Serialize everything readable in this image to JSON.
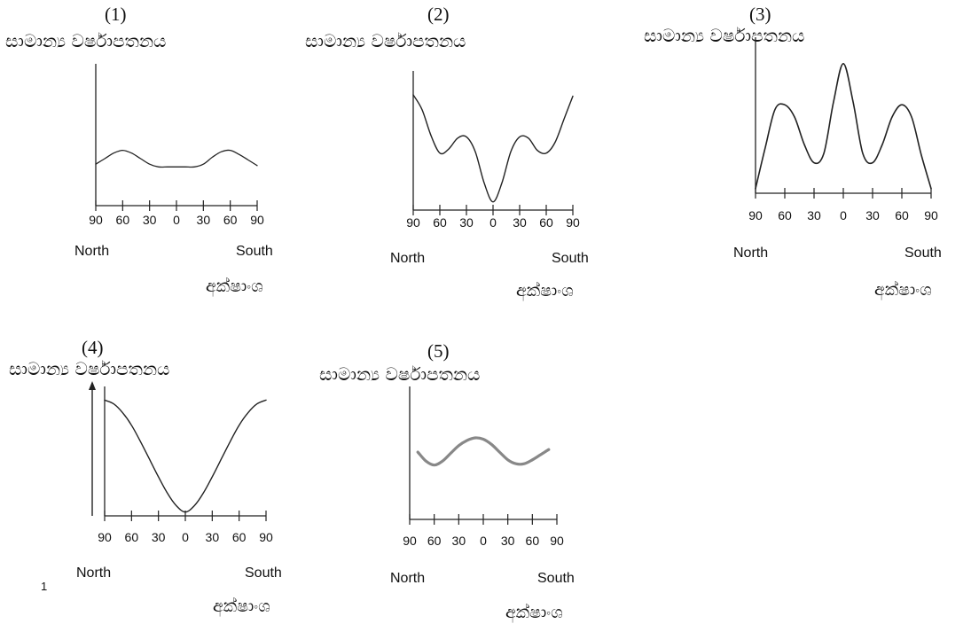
{
  "stray_mark": "1",
  "chart_data": [
    {
      "type": "line",
      "panel_number": "(1)",
      "ylabel": "සාමාන්‍ය වර්ෂාපතනය",
      "xlabel": "අක්ෂාංශ",
      "x_left": "North",
      "x_right": "South",
      "x_ticks": [
        "90",
        "60",
        "30",
        "0",
        "30",
        "60",
        "90"
      ],
      "x": [
        -90,
        -80,
        -70,
        -60,
        -50,
        -40,
        -30,
        -20,
        -10,
        0,
        10,
        20,
        30,
        40,
        50,
        60,
        70,
        80,
        90
      ],
      "y": [
        3.0,
        3.4,
        3.8,
        4.0,
        3.8,
        3.4,
        3.0,
        2.8,
        2.8,
        2.8,
        2.8,
        2.8,
        3.0,
        3.5,
        3.9,
        4.0,
        3.7,
        3.3,
        2.9
      ],
      "ylim": [
        0,
        10
      ]
    },
    {
      "type": "line",
      "panel_number": "(2)",
      "ylabel": "සාමාන්‍ය වර්ෂාපතනය",
      "xlabel": "අක්ෂාංශ",
      "x_left": "North",
      "x_right": "South",
      "x_ticks": [
        "90",
        "60",
        "30",
        "0",
        "30",
        "60",
        "90"
      ],
      "x": [
        -90,
        -80,
        -70,
        -60,
        -50,
        -40,
        -30,
        -20,
        -10,
        0,
        10,
        20,
        30,
        40,
        50,
        60,
        70,
        80,
        90
      ],
      "y": [
        8.5,
        7.4,
        5.5,
        4.2,
        4.5,
        5.3,
        5.4,
        4.3,
        2.0,
        0.6,
        2.0,
        4.3,
        5.4,
        5.3,
        4.4,
        4.2,
        5.0,
        6.7,
        8.4
      ],
      "ylim": [
        0,
        10
      ]
    },
    {
      "type": "line",
      "panel_number": "(3)",
      "ylabel": "සාමාන්‍ය වර්ෂාපතනය",
      "xlabel": "අක්ෂාංශ",
      "x_left": "North",
      "x_right": "South",
      "x_ticks": [
        "90",
        "60",
        "30",
        "0",
        "30",
        "60",
        "90"
      ],
      "x": [
        -90,
        -80,
        -70,
        -60,
        -50,
        -40,
        -30,
        -20,
        -10,
        0,
        10,
        20,
        30,
        40,
        50,
        60,
        70,
        80,
        90
      ],
      "y": [
        0.3,
        3.0,
        5.5,
        5.8,
        5.0,
        3.2,
        2.0,
        2.6,
        6.0,
        8.5,
        6.0,
        2.6,
        2.0,
        3.2,
        5.0,
        5.8,
        5.0,
        2.5,
        0.3
      ],
      "ylim": [
        0,
        10
      ]
    },
    {
      "type": "line",
      "panel_number": "(4)",
      "ylabel": "සාමාන්‍ය වර්ෂාපතනය",
      "xlabel": "අක්ෂාංශ",
      "x_left": "North",
      "x_right": "South",
      "x_ticks": [
        "90",
        "60",
        "30",
        "0",
        "30",
        "60",
        "90"
      ],
      "x": [
        -90,
        -80,
        -70,
        -60,
        -50,
        -40,
        -30,
        -20,
        -10,
        0,
        10,
        20,
        30,
        40,
        50,
        60,
        70,
        80,
        90
      ],
      "y": [
        9.2,
        8.9,
        8.2,
        7.2,
        5.9,
        4.5,
        3.1,
        1.8,
        0.8,
        0.3,
        0.8,
        1.8,
        3.1,
        4.5,
        5.9,
        7.2,
        8.2,
        8.9,
        9.2
      ],
      "ylim": [
        0,
        10
      ]
    },
    {
      "type": "line",
      "panel_number": "(5)",
      "ylabel": "සාමාන්‍ය වර්ෂාපතනය",
      "xlabel": "අක්ෂාංශ",
      "x_left": "North",
      "x_right": "South",
      "x_ticks": [
        "90",
        "60",
        "30",
        "0",
        "30",
        "60",
        "90"
      ],
      "x": [
        -80,
        -70,
        -60,
        -50,
        -40,
        -30,
        -20,
        -10,
        0,
        10,
        20,
        30,
        40,
        50,
        60,
        70,
        80
      ],
      "y": [
        5.2,
        4.5,
        4.2,
        4.5,
        5.1,
        5.7,
        6.1,
        6.3,
        6.2,
        5.8,
        5.2,
        4.6,
        4.3,
        4.3,
        4.6,
        5.0,
        5.4
      ],
      "ylim": [
        0,
        10
      ]
    }
  ]
}
